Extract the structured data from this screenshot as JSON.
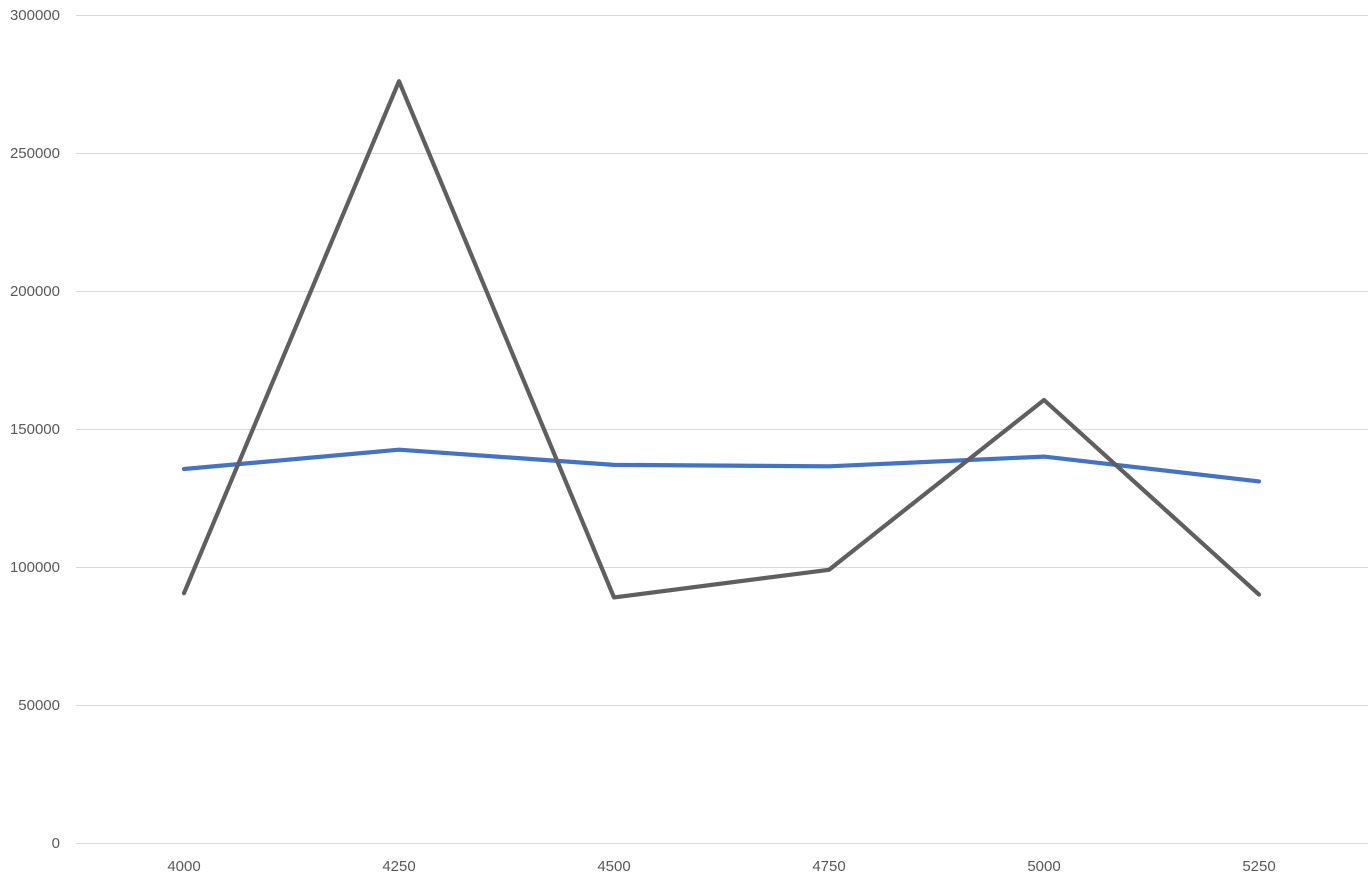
{
  "chart_data": {
    "type": "line",
    "title": "",
    "xlabel": "",
    "ylabel": "",
    "categories": [
      "4000",
      "4250",
      "4500",
      "4750",
      "5000",
      "5250"
    ],
    "ylim": [
      0,
      300000
    ],
    "y_ticks": [
      0,
      50000,
      100000,
      150000,
      200000,
      250000,
      300000
    ],
    "y_tick_labels": [
      "0",
      "50000",
      "100000",
      "150000",
      "200000",
      "250000",
      "300000"
    ],
    "grid": true,
    "legend": "none",
    "series": [
      {
        "color": "#4472c4",
        "values": [
          135500,
          142500,
          137000,
          136500,
          140000,
          131000
        ]
      },
      {
        "color": "#5f5f5f",
        "values": [
          90500,
          276000,
          89000,
          99000,
          160500,
          90000
        ]
      }
    ]
  }
}
